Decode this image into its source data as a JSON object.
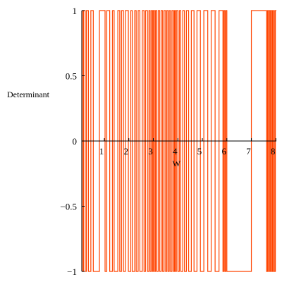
{
  "chart_data": {
    "type": "line",
    "title": "",
    "xlabel": "W",
    "ylabel": "Determinant",
    "xlim": [
      0.08,
      8.02
    ],
    "ylim": [
      -1,
      1
    ],
    "x_ticks": [
      1,
      2,
      3,
      4,
      5,
      6,
      7,
      8
    ],
    "x_tick_labels": [
      "1",
      "2",
      "3",
      "4",
      "5",
      "6",
      "7",
      "8"
    ],
    "y_ticks": [
      1,
      0.5,
      0,
      -0.5,
      -1
    ],
    "y_tick_labels": [
      "1",
      "0.5",
      "0",
      "−0.5",
      "−1"
    ],
    "grid": false,
    "series": [
      {
        "color": "#ff4400",
        "description": "Determinant oscillates between -1 and 1; each value below is a W at which the curve jumps between the extremes",
        "switch_x": [
          0.1,
          0.15,
          0.22,
          0.27,
          0.35,
          0.45,
          0.55,
          0.8,
          1.03,
          1.1,
          1.22,
          1.33,
          1.4,
          1.55,
          1.63,
          1.7,
          1.78,
          1.86,
          1.98,
          2.08,
          2.14,
          2.24,
          2.3,
          2.38,
          2.45,
          2.55,
          2.62,
          2.68,
          2.76,
          2.82,
          2.87,
          2.92,
          2.97,
          3.0,
          3.05,
          3.09,
          3.14,
          3.2,
          3.26,
          3.32,
          3.38,
          3.44,
          3.5,
          3.55,
          3.6,
          3.65,
          3.7,
          3.76,
          3.82,
          3.86,
          3.9,
          3.94,
          4.0,
          4.06,
          4.12,
          4.2,
          4.27,
          4.35,
          4.44,
          4.55,
          4.66,
          4.78,
          4.92,
          5.06,
          5.22,
          5.36,
          5.52,
          5.68,
          5.84,
          5.88,
          5.92,
          5.96,
          6.0,
          7.0,
          7.62,
          7.66,
          7.7,
          7.74,
          7.78,
          7.82,
          7.86,
          7.9,
          7.94,
          7.98
        ]
      }
    ]
  }
}
